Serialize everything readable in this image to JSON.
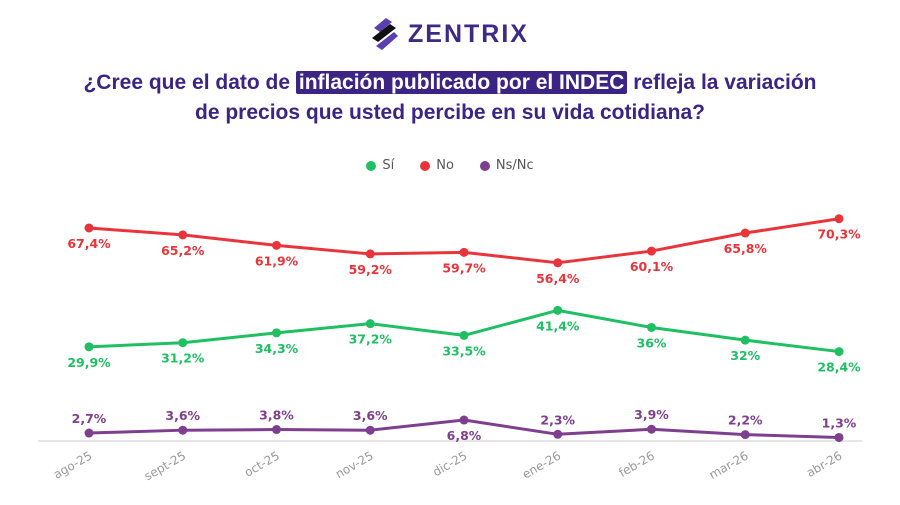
{
  "logo": {
    "text": "ZENTRIX"
  },
  "title": {
    "before": "¿Cree que el dato de ",
    "highlight": "inflación publicado por el INDEC",
    "after": " refleja la variación",
    "line2": "de precios que usted percibe en su vida cotidiana?"
  },
  "colors": {
    "si": "#1fbf63",
    "no": "#e8343a",
    "nsnc": "#7e3f8f",
    "brand": "#3b2484"
  },
  "chart_data": {
    "type": "line",
    "categories": [
      "ago-25",
      "sept-25",
      "oct-25",
      "nov-25",
      "dic-25",
      "ene-26",
      "feb-26",
      "mar-26",
      "abr-26"
    ],
    "series": [
      {
        "name": "Sí",
        "color": "#1fbf63",
        "values": [
          29.9,
          31.2,
          34.3,
          37.2,
          33.5,
          41.4,
          36,
          32,
          28.4
        ],
        "labels": [
          "29,9%",
          "31,2%",
          "34,3%",
          "37,2%",
          "33,5%",
          "41,4%",
          "36%",
          "32%",
          "28,4%"
        ]
      },
      {
        "name": "No",
        "color": "#e8343a",
        "values": [
          67.4,
          65.2,
          61.9,
          59.2,
          59.7,
          56.4,
          60.1,
          65.8,
          70.3
        ],
        "labels": [
          "67,4%",
          "65,2%",
          "61,9%",
          "59,2%",
          "59,7%",
          "56,4%",
          "60,1%",
          "65,8%",
          "70,3%"
        ]
      },
      {
        "name": "Ns/Nc",
        "color": "#7e3f8f",
        "values": [
          2.7,
          3.6,
          3.8,
          3.6,
          6.8,
          2.3,
          3.9,
          2.2,
          1.3
        ],
        "labels": [
          "2,7%",
          "3,6%",
          "3,8%",
          "3,6%",
          "6,8%",
          "2,3%",
          "3,9%",
          "2,2%",
          "1,3%"
        ]
      }
    ],
    "legend": "top-center",
    "grid": false
  }
}
